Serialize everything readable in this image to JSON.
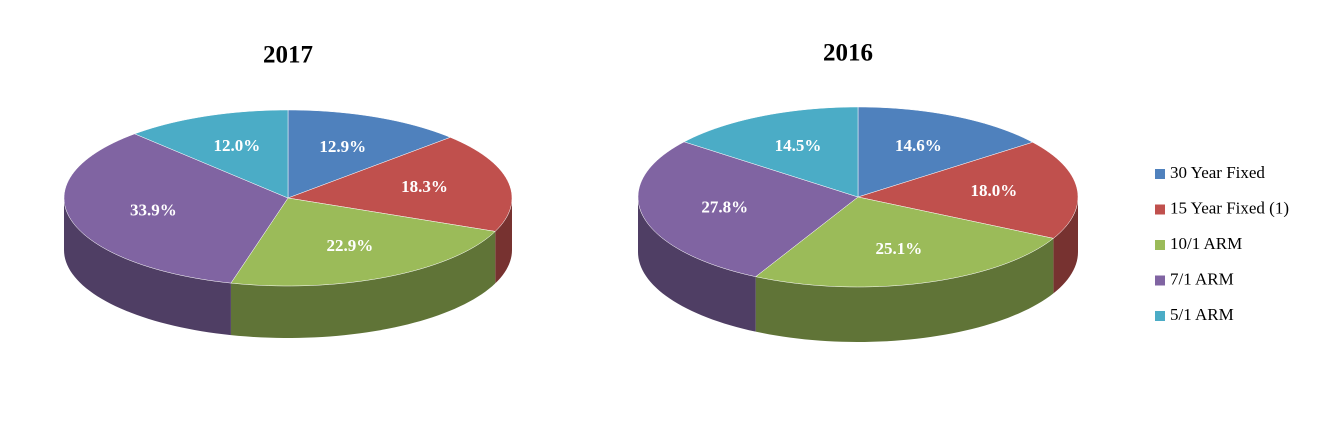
{
  "chart_data": [
    {
      "type": "pie",
      "title": "2017",
      "categories": [
        "30 Year Fixed",
        "15 Year Fixed (1)",
        "10/1 ARM",
        "7/1 ARM",
        "5/1 ARM"
      ],
      "values": [
        12.9,
        18.3,
        22.9,
        33.9,
        12.0
      ],
      "value_labels": [
        "12.9%",
        "18.3%",
        "22.9%",
        "33.9%",
        "12.0%"
      ],
      "colors": [
        "#4f81bd",
        "#c0504d",
        "#9bbb59",
        "#8064a2",
        "#4bacc6"
      ]
    },
    {
      "type": "pie",
      "title": "2016",
      "categories": [
        "30 Year Fixed",
        "15 Year Fixed (1)",
        "10/1 ARM",
        "7/1 ARM",
        "5/1 ARM"
      ],
      "values": [
        14.6,
        18.0,
        25.1,
        27.8,
        14.5
      ],
      "value_labels": [
        "14.6%",
        "18.0%",
        "25.1%",
        "27.8%",
        "14.5%"
      ],
      "colors": [
        "#4f81bd",
        "#c0504d",
        "#9bbb59",
        "#8064a2",
        "#4bacc6"
      ],
      "legend": "right"
    }
  ]
}
